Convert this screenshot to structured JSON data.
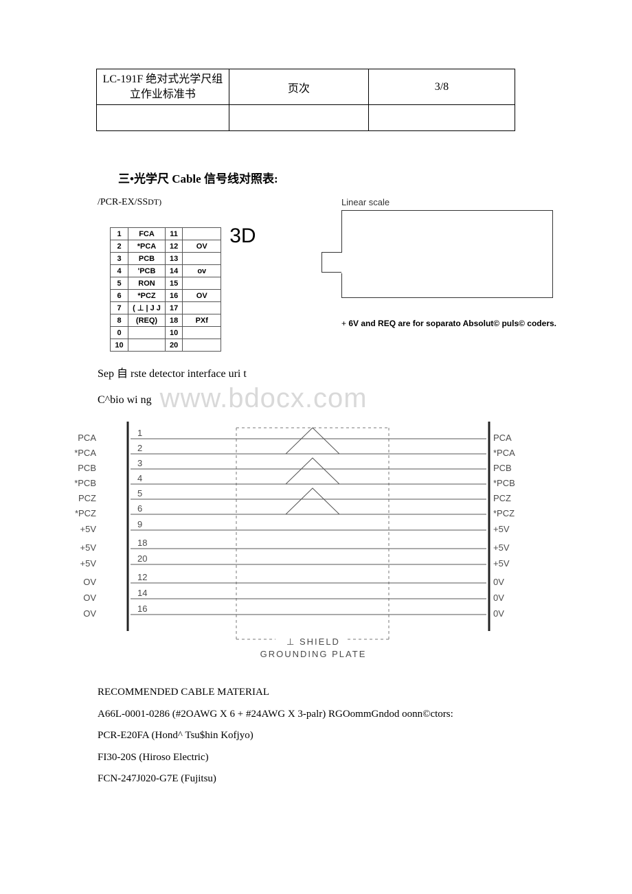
{
  "header": {
    "title": "LC-191F 绝对式光学尺组立作业标准书",
    "col2": "页次",
    "col3": "3/8"
  },
  "section": {
    "title": "三•光学尺 Cable 信号线对照表:",
    "subtitle_a": "/PCR-EX/SS",
    "subtitle_b": "DT)"
  },
  "pins": {
    "rows": [
      {
        "n": "1",
        "s": "FCA",
        "n2": "11",
        "s2": ""
      },
      {
        "n": "2",
        "s": "*PCA",
        "n2": "12",
        "s2": "OV"
      },
      {
        "n": "3",
        "s": "PCB",
        "n2": "13",
        "s2": ""
      },
      {
        "n": "4",
        "s": "'PCB",
        "n2": "14",
        "s2": "ov"
      },
      {
        "n": "5",
        "s": "RON",
        "n2": "15",
        "s2": ""
      },
      {
        "n": "6",
        "s": "*PCZ",
        "n2": "16",
        "s2": "OV"
      },
      {
        "n": "7",
        "s": "( ⊥ | J J",
        "n2": "17",
        "s2": ""
      },
      {
        "n": "8",
        "s": "(REQ)",
        "n2": "18",
        "s2": "PXf"
      },
      {
        "n": "0",
        "s": "",
        "n2": "10",
        "s2": ""
      },
      {
        "n": "10",
        "s": "",
        "n2": "20",
        "s2": ""
      }
    ],
    "big": "3D"
  },
  "linear_scale": {
    "label": "Linear scale",
    "note_a": "+ ",
    "note_b": "6V and REQ are for soparato Absolut© puls© coders."
  },
  "mid": {
    "sep": "Sep 自 rste detector interface uri t",
    "cwire": "C^bio wi ng",
    "watermark": "www.bdocx.com"
  },
  "diagram": {
    "left_labels": [
      "PCA",
      "*PCA",
      "PCB",
      "*PCB",
      "PCZ",
      "*PCZ",
      "+5V",
      "+5V",
      "+5V",
      "OV",
      "OV",
      "OV"
    ],
    "right_labels": [
      "PCA",
      "*PCA",
      "PCB",
      "*PCB",
      "PCZ",
      "*PCZ",
      "+5V",
      "+5V",
      "+5V",
      "0V",
      "0V",
      "0V"
    ],
    "wire_nums": [
      "1",
      "2",
      "3",
      "4",
      "5",
      "6",
      "9",
      "18",
      "20",
      "12",
      "14",
      "16"
    ],
    "shield": "⊥  SHIELD",
    "ground": "GROUNDING PLATE",
    "line_color": "#555555",
    "dash_color": "#777777",
    "thick_color": "#222222"
  },
  "footer": {
    "l1": "RECOMMENDED CABLE MATERIAL",
    "l2": "A66L-0001-0286 (#2OAWG X 6 + #24AWG X 3-palr) RGOommGndod oonn©ctors:",
    "l3": "PCR-E20FA (Hond^ Tsu$hin Kofjyo)",
    "l4": "FI30-20S (Hiroso Electric)",
    "l5": "FCN-247J020-G7E (Fujitsu)"
  }
}
